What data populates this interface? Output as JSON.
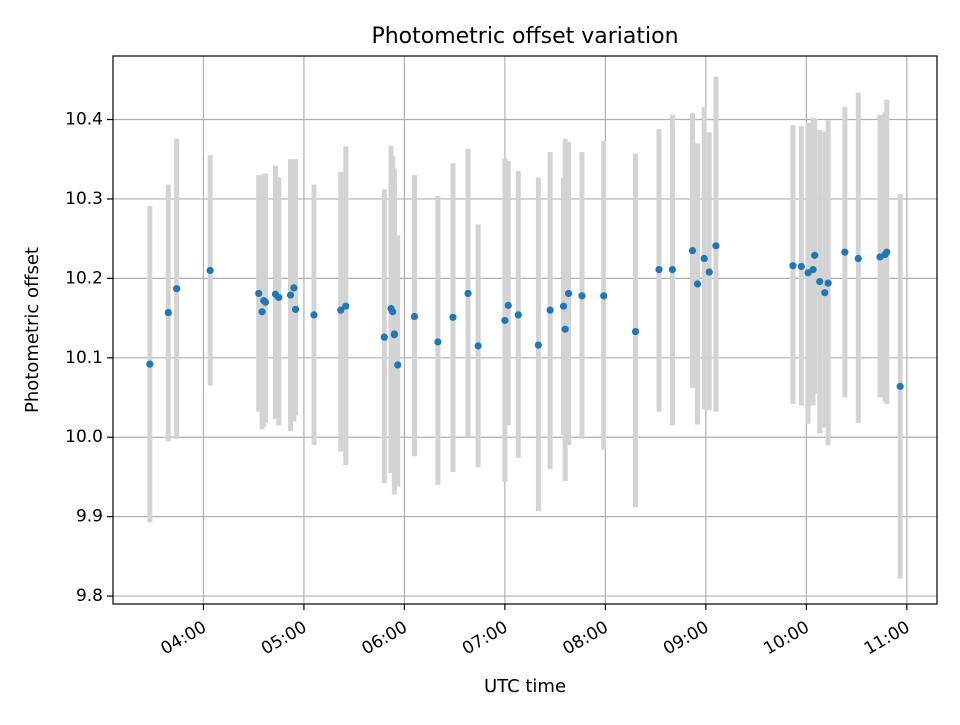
{
  "chart_data": {
    "type": "scatter",
    "title": "Photometric offset variation",
    "xlabel": "UTC time",
    "ylabel": "Photometric offset",
    "x_unit": "UTC hour",
    "xlim": [
      "03:06",
      "11:18"
    ],
    "ylim": [
      9.79,
      10.48
    ],
    "xticks": [
      "04:00",
      "05:00",
      "06:00",
      "07:00",
      "08:00",
      "09:00",
      "10:00",
      "11:00"
    ],
    "yticks": [
      "9.8",
      "9.9",
      "10.0",
      "10.1",
      "10.2",
      "10.3",
      "10.4"
    ],
    "grid": true,
    "errorbar_color": "#d3d3d3",
    "point_color": "#1f77b4",
    "series": [
      {
        "time": [
          "03:28",
          "03:39",
          "03:44",
          "04:04",
          "04:33",
          "04:35",
          "04:36",
          "04:37",
          "04:43",
          "04:45",
          "04:52",
          "04:54",
          "04:55",
          "05:06",
          "05:22",
          "05:25",
          "05:48",
          "05:52",
          "05:53",
          "05:54",
          "05:54",
          "05:56",
          "06:06",
          "06:20",
          "06:29",
          "06:38",
          "06:44",
          "07:00",
          "07:02",
          "07:08",
          "07:20",
          "07:27",
          "07:35",
          "07:36",
          "07:38",
          "07:46",
          "07:59",
          "08:18",
          "08:32",
          "08:40",
          "08:52",
          "08:55",
          "08:59",
          "09:02",
          "09:06",
          "09:52",
          "09:57",
          "10:01",
          "10:04",
          "10:05",
          "10:08",
          "10:11",
          "10:13",
          "10:23",
          "10:31",
          "10:44",
          "10:47",
          "10:48",
          "10:56"
        ],
        "y": [
          10.092,
          10.157,
          10.187,
          10.21,
          10.181,
          10.158,
          10.172,
          10.17,
          10.18,
          10.176,
          10.179,
          10.188,
          10.161,
          10.154,
          10.16,
          10.165,
          10.126,
          10.162,
          10.158,
          10.13,
          10.129,
          10.091,
          10.152,
          10.12,
          10.151,
          10.181,
          10.115,
          10.147,
          10.166,
          10.154,
          10.116,
          10.16,
          10.165,
          10.136,
          10.181,
          10.178,
          10.178,
          10.133,
          10.211,
          10.211,
          10.235,
          10.193,
          10.225,
          10.208,
          10.241,
          10.216,
          10.215,
          10.207,
          10.211,
          10.229,
          10.196,
          10.182,
          10.194,
          10.233,
          10.225,
          10.227,
          10.23,
          10.233,
          10.064
        ],
        "yerr_low": [
          9.893,
          9.995,
          9.998,
          10.065,
          10.032,
          10.01,
          10.013,
          10.018,
          10.023,
          10.015,
          10.008,
          10.02,
          10.028,
          9.99,
          9.982,
          9.965,
          9.942,
          9.955,
          9.968,
          9.938,
          9.928,
          9.938,
          9.976,
          9.94,
          9.956,
          10.0,
          9.962,
          9.944,
          10.015,
          9.974,
          9.907,
          9.96,
          10.003,
          9.945,
          9.99,
          9.998,
          9.984,
          9.912,
          10.032,
          10.015,
          10.062,
          10.016,
          10.035,
          10.034,
          10.032,
          10.042,
          10.04,
          10.017,
          10.04,
          10.055,
          10.005,
          10.012,
          9.99,
          10.05,
          10.018,
          10.05,
          10.045,
          10.042,
          9.822
        ],
        "yerr_high": [
          10.291,
          10.318,
          10.376,
          10.355,
          10.33,
          10.308,
          10.331,
          10.332,
          10.342,
          10.327,
          10.35,
          10.35,
          10.35,
          10.318,
          10.334,
          10.366,
          10.312,
          10.367,
          10.354,
          10.338,
          10.315,
          10.254,
          10.33,
          10.304,
          10.345,
          10.363,
          10.268,
          10.351,
          10.348,
          10.335,
          10.327,
          10.359,
          10.327,
          10.376,
          10.372,
          10.359,
          10.373,
          10.357,
          10.388,
          10.406,
          10.408,
          10.37,
          10.416,
          10.384,
          10.454,
          10.393,
          10.392,
          10.396,
          10.402,
          10.401,
          10.387,
          10.385,
          10.399,
          10.416,
          10.434,
          10.406,
          10.409,
          10.425,
          10.306
        ]
      }
    ]
  }
}
